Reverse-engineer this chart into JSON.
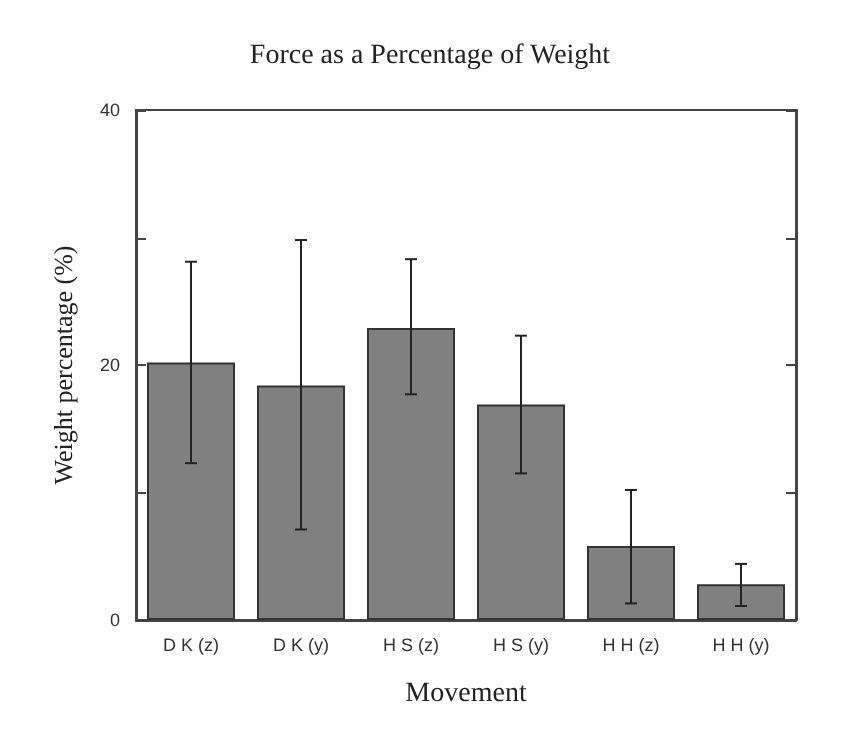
{
  "chart_data": {
    "type": "bar",
    "title": "Force as a Percentage of Weight",
    "xlabel": "Movement",
    "ylabel": "Weight percentage (%)",
    "categories": [
      "D K (z)",
      "D K (y)",
      "H S (z)",
      "H S (y)",
      "H H (z)",
      "H H (y)"
    ],
    "values": [
      20.2,
      18.4,
      22.9,
      16.9,
      5.8,
      2.8
    ],
    "errors": [
      [
        12.3,
        28.1
      ],
      [
        7.1,
        29.8
      ],
      [
        17.7,
        28.3
      ],
      [
        11.5,
        22.3
      ],
      [
        1.3,
        10.2
      ],
      [
        1.1,
        4.4
      ]
    ],
    "color": "#808080",
    "ylim": [
      0,
      40
    ],
    "yticks": [
      0,
      {
        "value": 10,
        "label": null
      },
      20,
      {
        "value": 30,
        "label": null
      },
      40
    ],
    "grid": false
  }
}
